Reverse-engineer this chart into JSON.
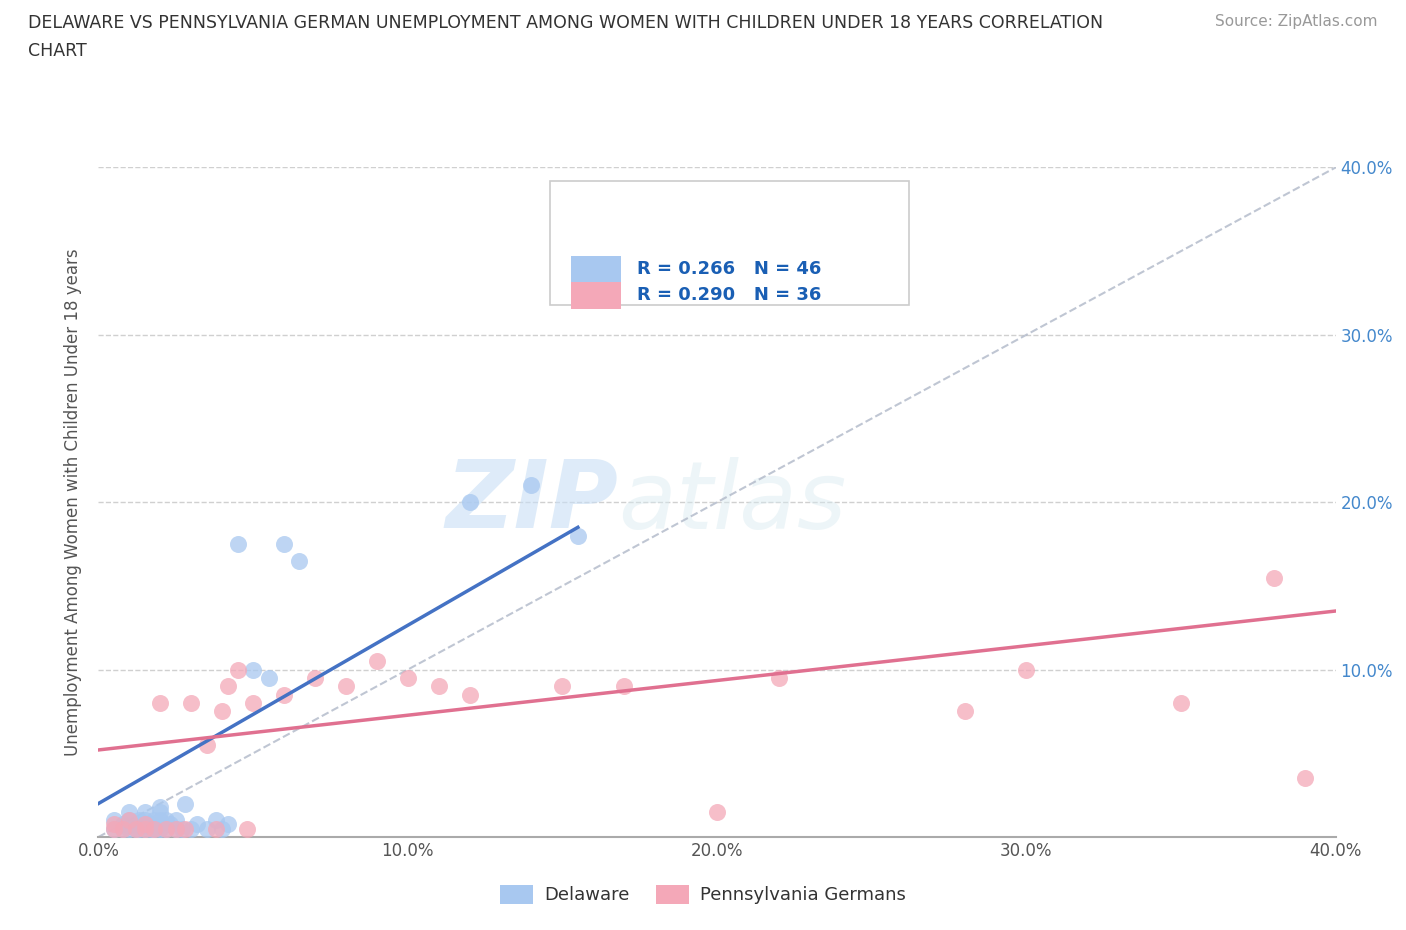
{
  "title_line1": "DELAWARE VS PENNSYLVANIA GERMAN UNEMPLOYMENT AMONG WOMEN WITH CHILDREN UNDER 18 YEARS CORRELATION",
  "title_line2": "CHART",
  "source": "Source: ZipAtlas.com",
  "ylabel": "Unemployment Among Women with Children Under 18 years",
  "xlim": [
    0.0,
    0.4
  ],
  "ylim": [
    0.0,
    0.4
  ],
  "xticks": [
    0.0,
    0.1,
    0.2,
    0.3,
    0.4
  ],
  "yticks": [
    0.1,
    0.2,
    0.3,
    0.4
  ],
  "xticklabels": [
    "0.0%",
    "10.0%",
    "20.0%",
    "30.0%",
    "40.0%"
  ],
  "yticklabels_right": [
    "10.0%",
    "20.0%",
    "30.0%",
    "40.0%"
  ],
  "de_R": 0.266,
  "de_N": 46,
  "pa_R": 0.29,
  "pa_N": 36,
  "de_color": "#a8c8f0",
  "pa_color": "#f4a8b8",
  "de_line_color": "#4472C4",
  "pa_line_color": "#e07090",
  "diagonal_color": "#b0b8c8",
  "watermark_zip": "ZIP",
  "watermark_atlas": "atlas",
  "legend_label_de": "Delaware",
  "legend_label_pa": "Pennsylvania Germans",
  "de_x": [
    0.005,
    0.005,
    0.008,
    0.008,
    0.01,
    0.01,
    0.01,
    0.01,
    0.012,
    0.012,
    0.013,
    0.013,
    0.015,
    0.015,
    0.015,
    0.015,
    0.017,
    0.017,
    0.018,
    0.018,
    0.02,
    0.02,
    0.02,
    0.02,
    0.02,
    0.022,
    0.022,
    0.023,
    0.025,
    0.025,
    0.027,
    0.028,
    0.03,
    0.032,
    0.035,
    0.038,
    0.04,
    0.042,
    0.045,
    0.05,
    0.055,
    0.06,
    0.065,
    0.12,
    0.14,
    0.155
  ],
  "de_y": [
    0.005,
    0.01,
    0.005,
    0.008,
    0.005,
    0.007,
    0.01,
    0.015,
    0.005,
    0.008,
    0.005,
    0.01,
    0.005,
    0.008,
    0.01,
    0.015,
    0.005,
    0.008,
    0.005,
    0.01,
    0.005,
    0.008,
    0.01,
    0.015,
    0.018,
    0.005,
    0.01,
    0.008,
    0.005,
    0.01,
    0.005,
    0.02,
    0.005,
    0.008,
    0.005,
    0.01,
    0.005,
    0.008,
    0.175,
    0.1,
    0.095,
    0.175,
    0.165,
    0.2,
    0.21,
    0.18
  ],
  "pa_x": [
    0.005,
    0.005,
    0.008,
    0.01,
    0.012,
    0.015,
    0.015,
    0.018,
    0.02,
    0.022,
    0.025,
    0.028,
    0.03,
    0.035,
    0.038,
    0.04,
    0.042,
    0.045,
    0.048,
    0.05,
    0.06,
    0.07,
    0.08,
    0.09,
    0.1,
    0.11,
    0.12,
    0.15,
    0.17,
    0.2,
    0.22,
    0.28,
    0.3,
    0.35,
    0.38,
    0.39
  ],
  "pa_y": [
    0.005,
    0.008,
    0.005,
    0.01,
    0.005,
    0.008,
    0.005,
    0.005,
    0.08,
    0.005,
    0.005,
    0.005,
    0.08,
    0.055,
    0.005,
    0.075,
    0.09,
    0.1,
    0.005,
    0.08,
    0.085,
    0.095,
    0.09,
    0.105,
    0.095,
    0.09,
    0.085,
    0.09,
    0.09,
    0.015,
    0.095,
    0.075,
    0.1,
    0.08,
    0.155,
    0.035
  ],
  "de_line_x0": 0.0,
  "de_line_y0": 0.02,
  "de_line_x1": 0.155,
  "de_line_y1": 0.185,
  "pa_line_x0": 0.0,
  "pa_line_y0": 0.052,
  "pa_line_x1": 0.4,
  "pa_line_y1": 0.135,
  "background_color": "#ffffff",
  "grid_color": "#d0d0d0"
}
